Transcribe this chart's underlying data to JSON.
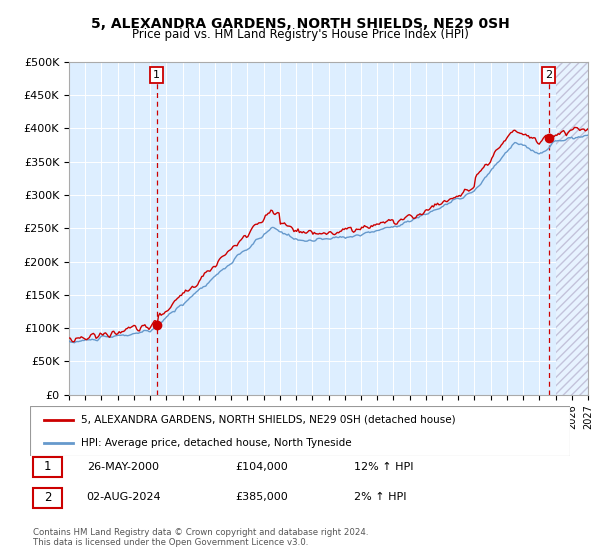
{
  "title": "5, ALEXANDRA GARDENS, NORTH SHIELDS, NE29 0SH",
  "subtitle": "Price paid vs. HM Land Registry's House Price Index (HPI)",
  "footer": "Contains HM Land Registry data © Crown copyright and database right 2024.\nThis data is licensed under the Open Government Licence v3.0.",
  "legend_entry1": "5, ALEXANDRA GARDENS, NORTH SHIELDS, NE29 0SH (detached house)",
  "legend_entry2": "HPI: Average price, detached house, North Tyneside",
  "annotation1_date": "26-MAY-2000",
  "annotation1_price": "£104,000",
  "annotation1_hpi": "12% ↑ HPI",
  "annotation2_date": "02-AUG-2024",
  "annotation2_price": "£385,000",
  "annotation2_hpi": "2% ↑ HPI",
  "red_color": "#cc0000",
  "blue_color": "#6699cc",
  "plot_bg": "#ddeeff",
  "grid_color": "#ffffff",
  "ylim": [
    0,
    500000
  ],
  "yticks": [
    0,
    50000,
    100000,
    150000,
    200000,
    250000,
    300000,
    350000,
    400000,
    450000,
    500000
  ],
  "ytick_labels": [
    "£0",
    "£50K",
    "£100K",
    "£150K",
    "£200K",
    "£250K",
    "£300K",
    "£350K",
    "£400K",
    "£450K",
    "£500K"
  ],
  "sale1_x": 2000.4,
  "sale1_y": 104000,
  "sale2_x": 2024.58,
  "sale2_y": 385000,
  "hatch_start": 2025.0,
  "xlim_start": 1995,
  "xlim_end": 2027
}
